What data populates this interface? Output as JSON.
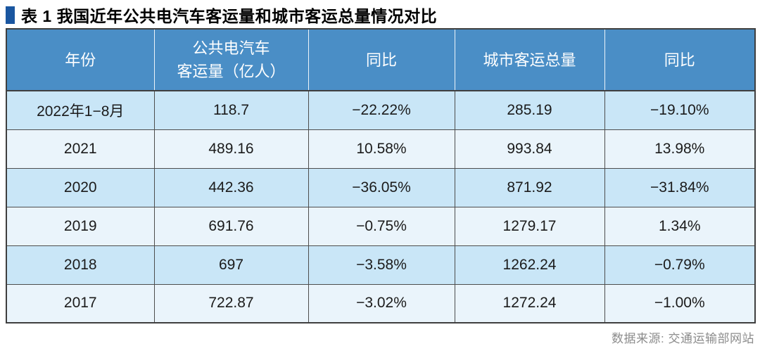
{
  "title": "表 1 我国近年公共电汽车客运量和城市客运总量情况对比",
  "source_note": "数据来源: 交通运输部网站",
  "colors": {
    "header_bg": "#4a8ec6",
    "row_light_blue": "#c9e6f7",
    "row_pale_blue": "#eaf4fb",
    "title_bullet": "#1a56a0",
    "header_text": "#ffffff",
    "body_text": "#1b1b1b",
    "border_dark": "#3f3f3f"
  },
  "table": {
    "columns": [
      "年份",
      "公共电汽车\n客运量（亿人）",
      "同比",
      "城市客运总量",
      "同比"
    ],
    "rows": [
      [
        "2022年1−8月",
        "118.7",
        "−22.22%",
        "285.19",
        "−19.10%"
      ],
      [
        "2021",
        "489.16",
        "10.58%",
        "993.84",
        "13.98%"
      ],
      [
        "2020",
        "442.36",
        "−36.05%",
        "871.92",
        "−31.84%"
      ],
      [
        "2019",
        "691.76",
        "−0.75%",
        "1279.17",
        "1.34%"
      ],
      [
        "2018",
        "697",
        "−3.58%",
        "1262.24",
        "−0.79%"
      ],
      [
        "2017",
        "722.87",
        "−3.02%",
        "1272.24",
        "−1.00%"
      ]
    ]
  },
  "chart_data": {
    "type": "table",
    "title": "表 1 我国近年公共电汽车客运量和城市客运总量情况对比",
    "columns": [
      "年份",
      "公共电汽车客运量（亿人）",
      "同比",
      "城市客运总量",
      "同比"
    ],
    "rows": [
      [
        "2022年1−8月",
        118.7,
        "−22.22%",
        285.19,
        "−19.10%"
      ],
      [
        "2021",
        489.16,
        "10.58%",
        993.84,
        "13.98%"
      ],
      [
        "2020",
        442.36,
        "−36.05%",
        871.92,
        "−31.84%"
      ],
      [
        "2019",
        691.76,
        "−0.75%",
        1279.17,
        "1.34%"
      ],
      [
        "2018",
        697,
        "−3.58%",
        1262.24,
        "−0.79%"
      ],
      [
        "2017",
        722.87,
        "−3.02%",
        1272.24,
        "−1.00%"
      ]
    ],
    "source": "数据来源: 交通运输部网站"
  }
}
